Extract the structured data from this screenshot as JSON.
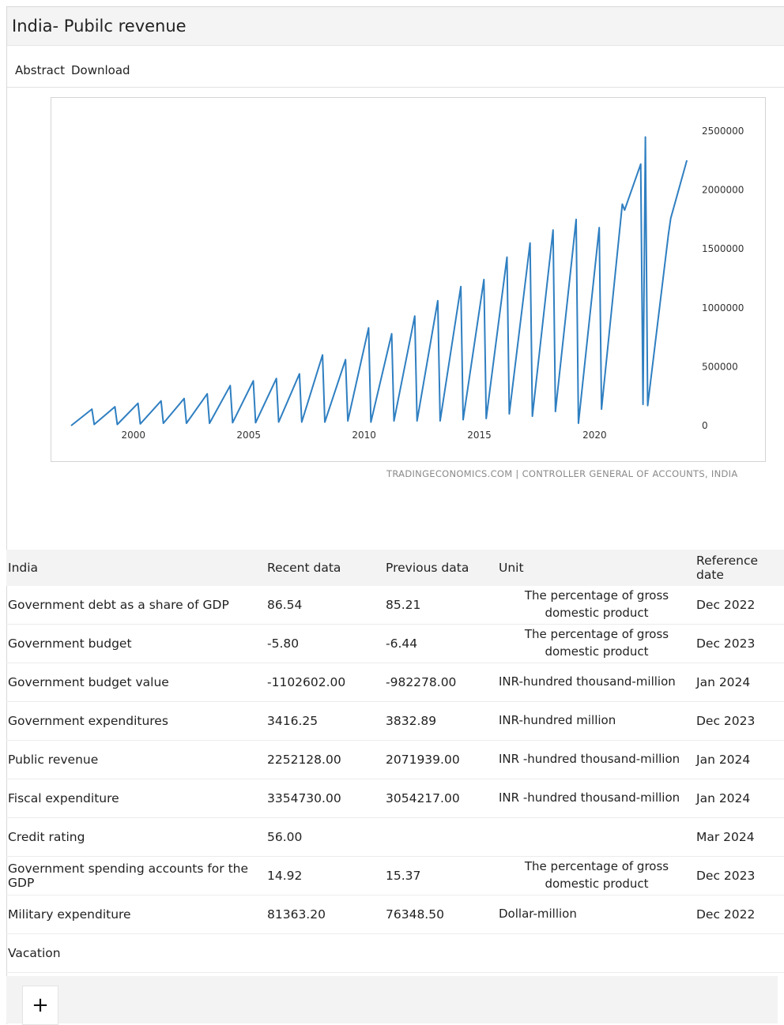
{
  "window": {
    "title": "India- Pubilc revenue"
  },
  "tabs": [
    {
      "label": "Abstract",
      "active": true
    },
    {
      "label": "Download",
      "active": false
    }
  ],
  "chart_source": "TRADINGECONOMICS.COM | CONTROLLER GENERAL OF ACCOUNTS, INDIA",
  "chart_data": {
    "type": "line",
    "title": "",
    "xlabel": "",
    "ylabel": "",
    "x_ticks": [
      "2000",
      "2005",
      "2010",
      "2015",
      "2020"
    ],
    "y_ticks": [
      "0",
      "500000",
      "1000000",
      "1500000",
      "2000000",
      "2500000"
    ],
    "ylim": [
      0,
      2500000
    ],
    "xlim": [
      1997.3,
      2024.1
    ],
    "y_axis_side": "right",
    "grid": false,
    "legend": "none",
    "series_color": "#2f7fc1",
    "series": [
      {
        "x": [
          1997.3,
          1998.2,
          1998.3,
          1999.2,
          1999.3,
          2000.2,
          2000.3,
          2001.2,
          2001.3,
          2002.2,
          2002.3,
          2003.2,
          2003.3,
          2004.2,
          2004.3,
          2005.2,
          2005.3,
          2006.2,
          2006.3,
          2007.2,
          2007.3,
          2008.2,
          2008.3,
          2009.2,
          2009.3,
          2010.2,
          2010.3,
          2011.2,
          2011.3,
          2012.2,
          2012.3,
          2013.2,
          2013.3,
          2014.2,
          2014.3,
          2015.2,
          2015.3,
          2016.2,
          2016.3,
          2017.2,
          2017.3,
          2018.2,
          2018.3,
          2019.2,
          2019.3,
          2020.2,
          2020.3,
          2021.2,
          2021.3,
          2022.0,
          2022.1,
          2022.2,
          2022.3,
          2023.2,
          2023.3,
          2024.0
        ],
        "y": [
          0,
          140000,
          10000,
          160000,
          10000,
          190000,
          15000,
          210000,
          20000,
          230000,
          20000,
          270000,
          20000,
          340000,
          25000,
          380000,
          25000,
          400000,
          30000,
          440000,
          30000,
          600000,
          30000,
          560000,
          40000,
          830000,
          30000,
          780000,
          40000,
          930000,
          40000,
          1060000,
          40000,
          1180000,
          50000,
          1240000,
          60000,
          1430000,
          100000,
          1550000,
          80000,
          1660000,
          120000,
          1750000,
          20000,
          1680000,
          140000,
          1880000,
          1830000,
          2220000,
          180000,
          2450000,
          170000,
          1620000,
          1760000,
          2252128
        ]
      }
    ]
  },
  "table": {
    "headers": [
      "India",
      "Recent data",
      "Previous data",
      "Unit",
      "Reference date"
    ],
    "rows": [
      [
        "Government debt as a share of GDP",
        "86.54",
        "85.21",
        "The percentage of gross domestic product",
        "Dec 2022"
      ],
      [
        "Government budget",
        "-5.80",
        "-6.44",
        "The percentage of gross domestic product",
        "Dec 2023"
      ],
      [
        "Government budget value",
        "-1102602.00",
        "-982278.00",
        "INR-hundred thousand-million",
        "Jan 2024"
      ],
      [
        "Government expenditures",
        "3416.25",
        "3832.89",
        "INR-hundred million",
        "Dec 2023"
      ],
      [
        "Public revenue",
        "2252128.00",
        "2071939.00",
        "INR -hundred thousand-million",
        "Jan 2024"
      ],
      [
        "Fiscal expenditure",
        "3354730.00",
        "3054217.00",
        "INR -hundred thousand-million",
        "Jan 2024"
      ],
      [
        "Credit rating",
        "56.00",
        "",
        "",
        "Mar 2024"
      ],
      [
        "Government spending accounts for the GDP",
        "14.92",
        "15.37",
        "The percentage of gross domestic product",
        "Dec 2023"
      ],
      [
        "Military expenditure",
        "81363.20",
        "76348.50",
        "Dollar-million",
        "Dec 2022"
      ],
      [
        "Vacation",
        "",
        "",
        "",
        ""
      ]
    ]
  },
  "add_button": {
    "label": "+",
    "icon": "plus-icon"
  }
}
